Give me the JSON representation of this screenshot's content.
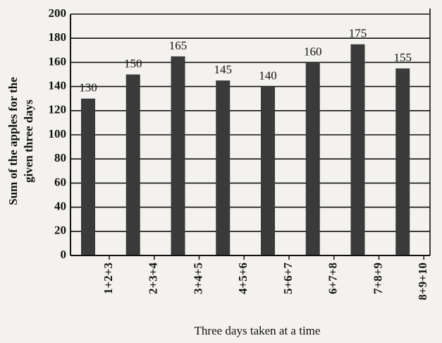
{
  "chart_data": {
    "type": "bar",
    "y_label": [
      "Sum of the apples for the",
      "given three days"
    ],
    "x_label": "Three days taken at a time",
    "categories": [
      "1+2+3",
      "2+3+4",
      "3+4+5",
      "4+5+6",
      "5+6+7",
      "6+7+8",
      "7+8+9",
      "8+9+10"
    ],
    "values": [
      130,
      150,
      165,
      145,
      140,
      160,
      175,
      155
    ],
    "color": "#3a3a3a",
    "ylim": [
      0,
      200
    ],
    "yticks": [
      0,
      20,
      40,
      60,
      80,
      100,
      120,
      140,
      160,
      180,
      200
    ],
    "grid": true
  }
}
